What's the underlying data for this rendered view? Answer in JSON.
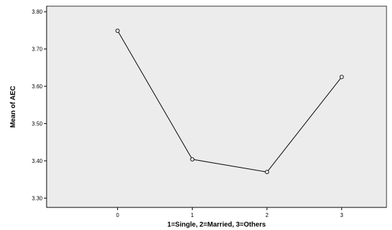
{
  "chart_data": {
    "type": "line",
    "x": [
      0,
      1,
      2,
      3
    ],
    "x_tick_labels": [
      "0",
      "1",
      "2",
      "3"
    ],
    "series": [
      {
        "values": [
          3.749,
          3.404,
          3.37,
          3.625
        ]
      }
    ],
    "y_tick_labels": [
      "3.30",
      "3.40",
      "3.50",
      "3.60",
      "3.70",
      "3.80"
    ],
    "y_ticks": [
      3.3,
      3.4,
      3.5,
      3.6,
      3.7,
      3.8
    ],
    "xlabel": "1=Single, 2=Married, 3=Others",
    "ylabel": "Mean of AEC",
    "ylim": [
      3.275,
      3.815
    ],
    "grid": false,
    "plot_background": "#ececec",
    "line_color": "#000000",
    "marker": "open-circle"
  }
}
